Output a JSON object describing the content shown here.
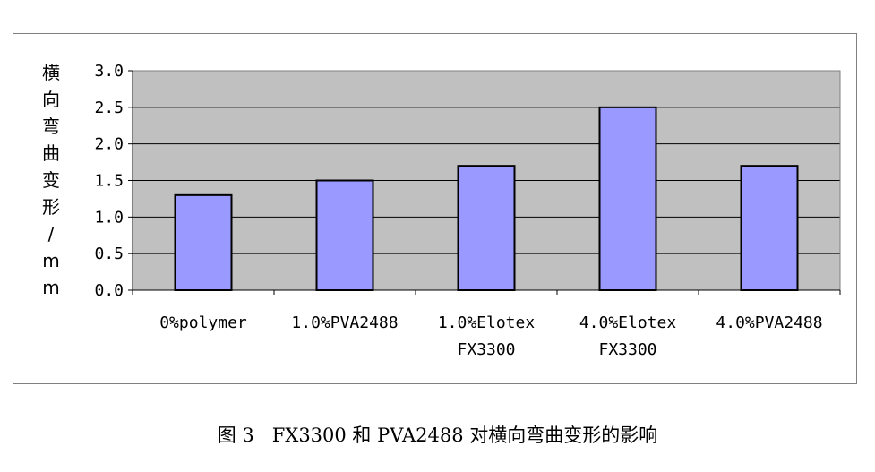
{
  "chart_data": {
    "type": "bar",
    "categories": [
      "0%polymer",
      "1.0%PVA2488",
      "1.0%Elotex FX3300",
      "4.0%Elotex FX3300",
      "4.0%PVA2488"
    ],
    "category_lines": [
      [
        "0%polymer"
      ],
      [
        "1.0%PVA2488"
      ],
      [
        "1.0%Elotex",
        "FX3300"
      ],
      [
        "4.0%Elotex",
        "FX3300"
      ],
      [
        "4.0%PVA2488"
      ]
    ],
    "values": [
      1.3,
      1.5,
      1.7,
      2.5,
      1.7
    ],
    "ylabel": "横向弯曲变形/mm",
    "ylim": [
      0,
      3.0
    ],
    "yticks": [
      "0.0",
      "0.5",
      "1.0",
      "1.5",
      "2.0",
      "2.5",
      "3.0"
    ],
    "grid": true,
    "legend": "none",
    "colors": {
      "bar": "#9999ff",
      "plot_background": "#c0c0c0",
      "bar_edge": "#000000",
      "gridline": "#000000"
    }
  },
  "caption": "图 3   FX3300 和 PVA2488 对横向弯曲变形的影响"
}
